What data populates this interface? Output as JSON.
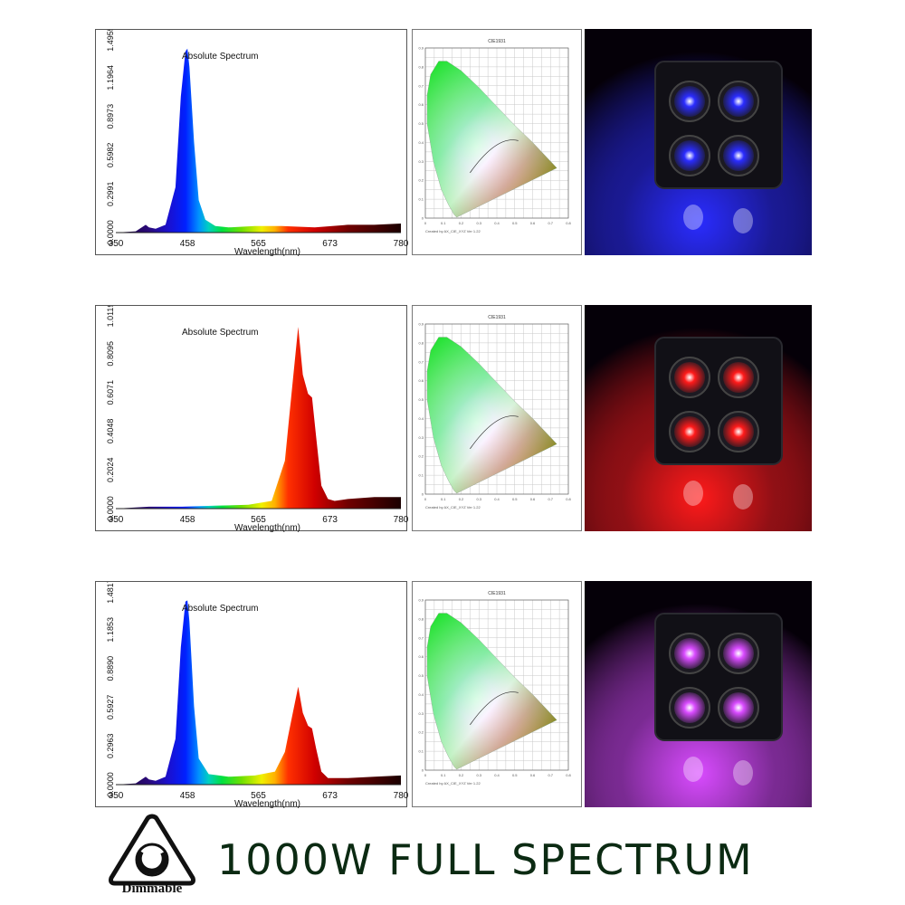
{
  "chart_data": [
    {
      "type": "area",
      "title": "Absolute Spectrum",
      "xlabel": "Wavelength(nm)",
      "xlim": [
        350,
        780
      ],
      "x_ticks": [
        "350",
        "458",
        "565",
        "673",
        "780"
      ],
      "ylim": [
        0,
        1.4955
      ],
      "y_ticks": [
        "0.0000",
        "0.2991",
        "0.5982",
        "0.8973",
        "1.1964",
        "1.4955"
      ],
      "x": [
        350,
        380,
        395,
        400,
        410,
        425,
        440,
        448,
        455,
        458,
        461,
        468,
        475,
        485,
        500,
        520,
        560,
        600,
        650,
        700,
        740,
        780
      ],
      "y": [
        0.0,
        0.01,
        0.06,
        0.04,
        0.03,
        0.06,
        0.35,
        1.05,
        1.4,
        1.42,
        1.28,
        0.7,
        0.25,
        0.1,
        0.05,
        0.04,
        0.05,
        0.05,
        0.04,
        0.06,
        0.06,
        0.07
      ],
      "cie": {
        "title": "CIE1931",
        "credit": "Created by AX_CIE_XYZ Ver 1.22"
      }
    },
    {
      "type": "area",
      "title": "Absolute Spectrum",
      "xlabel": "Wavelength(nm)",
      "xlim": [
        350,
        780
      ],
      "x_ticks": [
        "350",
        "458",
        "565",
        "673",
        "780"
      ],
      "ylim": [
        0,
        1.0119
      ],
      "y_ticks": [
        "0.0000",
        "0.2024",
        "0.4048",
        "0.6071",
        "0.8095",
        "1.0119"
      ],
      "x": [
        350,
        400,
        450,
        500,
        550,
        585,
        605,
        615,
        625,
        632,
        640,
        646,
        652,
        660,
        670,
        680,
        700,
        740,
        780
      ],
      "y": [
        0.0,
        0.01,
        0.01,
        0.015,
        0.02,
        0.04,
        0.25,
        0.6,
        0.95,
        0.7,
        0.6,
        0.58,
        0.38,
        0.12,
        0.05,
        0.04,
        0.05,
        0.06,
        0.06
      ],
      "cie": {
        "title": "CIE1931",
        "credit": "Created by AX_CIE_XYZ Ver 1.22"
      }
    },
    {
      "type": "area",
      "title": "Absolute Spectrum",
      "xlabel": "Wavelength(nm)",
      "xlim": [
        350,
        780
      ],
      "x_ticks": [
        "350",
        "458",
        "565",
        "673",
        "780"
      ],
      "ylim": [
        0,
        1.4817
      ],
      "y_ticks": [
        "0.0000",
        "0.2963",
        "0.5927",
        "0.8890",
        "1.1853",
        "1.4817"
      ],
      "x": [
        350,
        380,
        395,
        400,
        410,
        425,
        440,
        448,
        455,
        458,
        461,
        468,
        475,
        490,
        520,
        560,
        590,
        605,
        615,
        625,
        632,
        640,
        646,
        652,
        660,
        670,
        700,
        740,
        780
      ],
      "y": [
        0.0,
        0.01,
        0.06,
        0.04,
        0.03,
        0.06,
        0.35,
        1.05,
        1.4,
        1.41,
        1.25,
        0.6,
        0.2,
        0.08,
        0.06,
        0.07,
        0.1,
        0.25,
        0.5,
        0.75,
        0.55,
        0.45,
        0.43,
        0.28,
        0.1,
        0.05,
        0.05,
        0.06,
        0.07
      ],
      "cie": {
        "title": "CIE1931",
        "credit": "Created by AX_CIE_XYZ Ver 1.22"
      }
    }
  ],
  "photos": [
    {
      "label": "blue-led-photo",
      "color": "#2a2cff"
    },
    {
      "label": "red-led-photo",
      "color": "#ff1a1a"
    },
    {
      "label": "purple-led-photo",
      "color": "#d94bff"
    }
  ],
  "footer": {
    "dimmable_label": "Dimmable",
    "headline": "1000W FULL SPECTRUM"
  }
}
